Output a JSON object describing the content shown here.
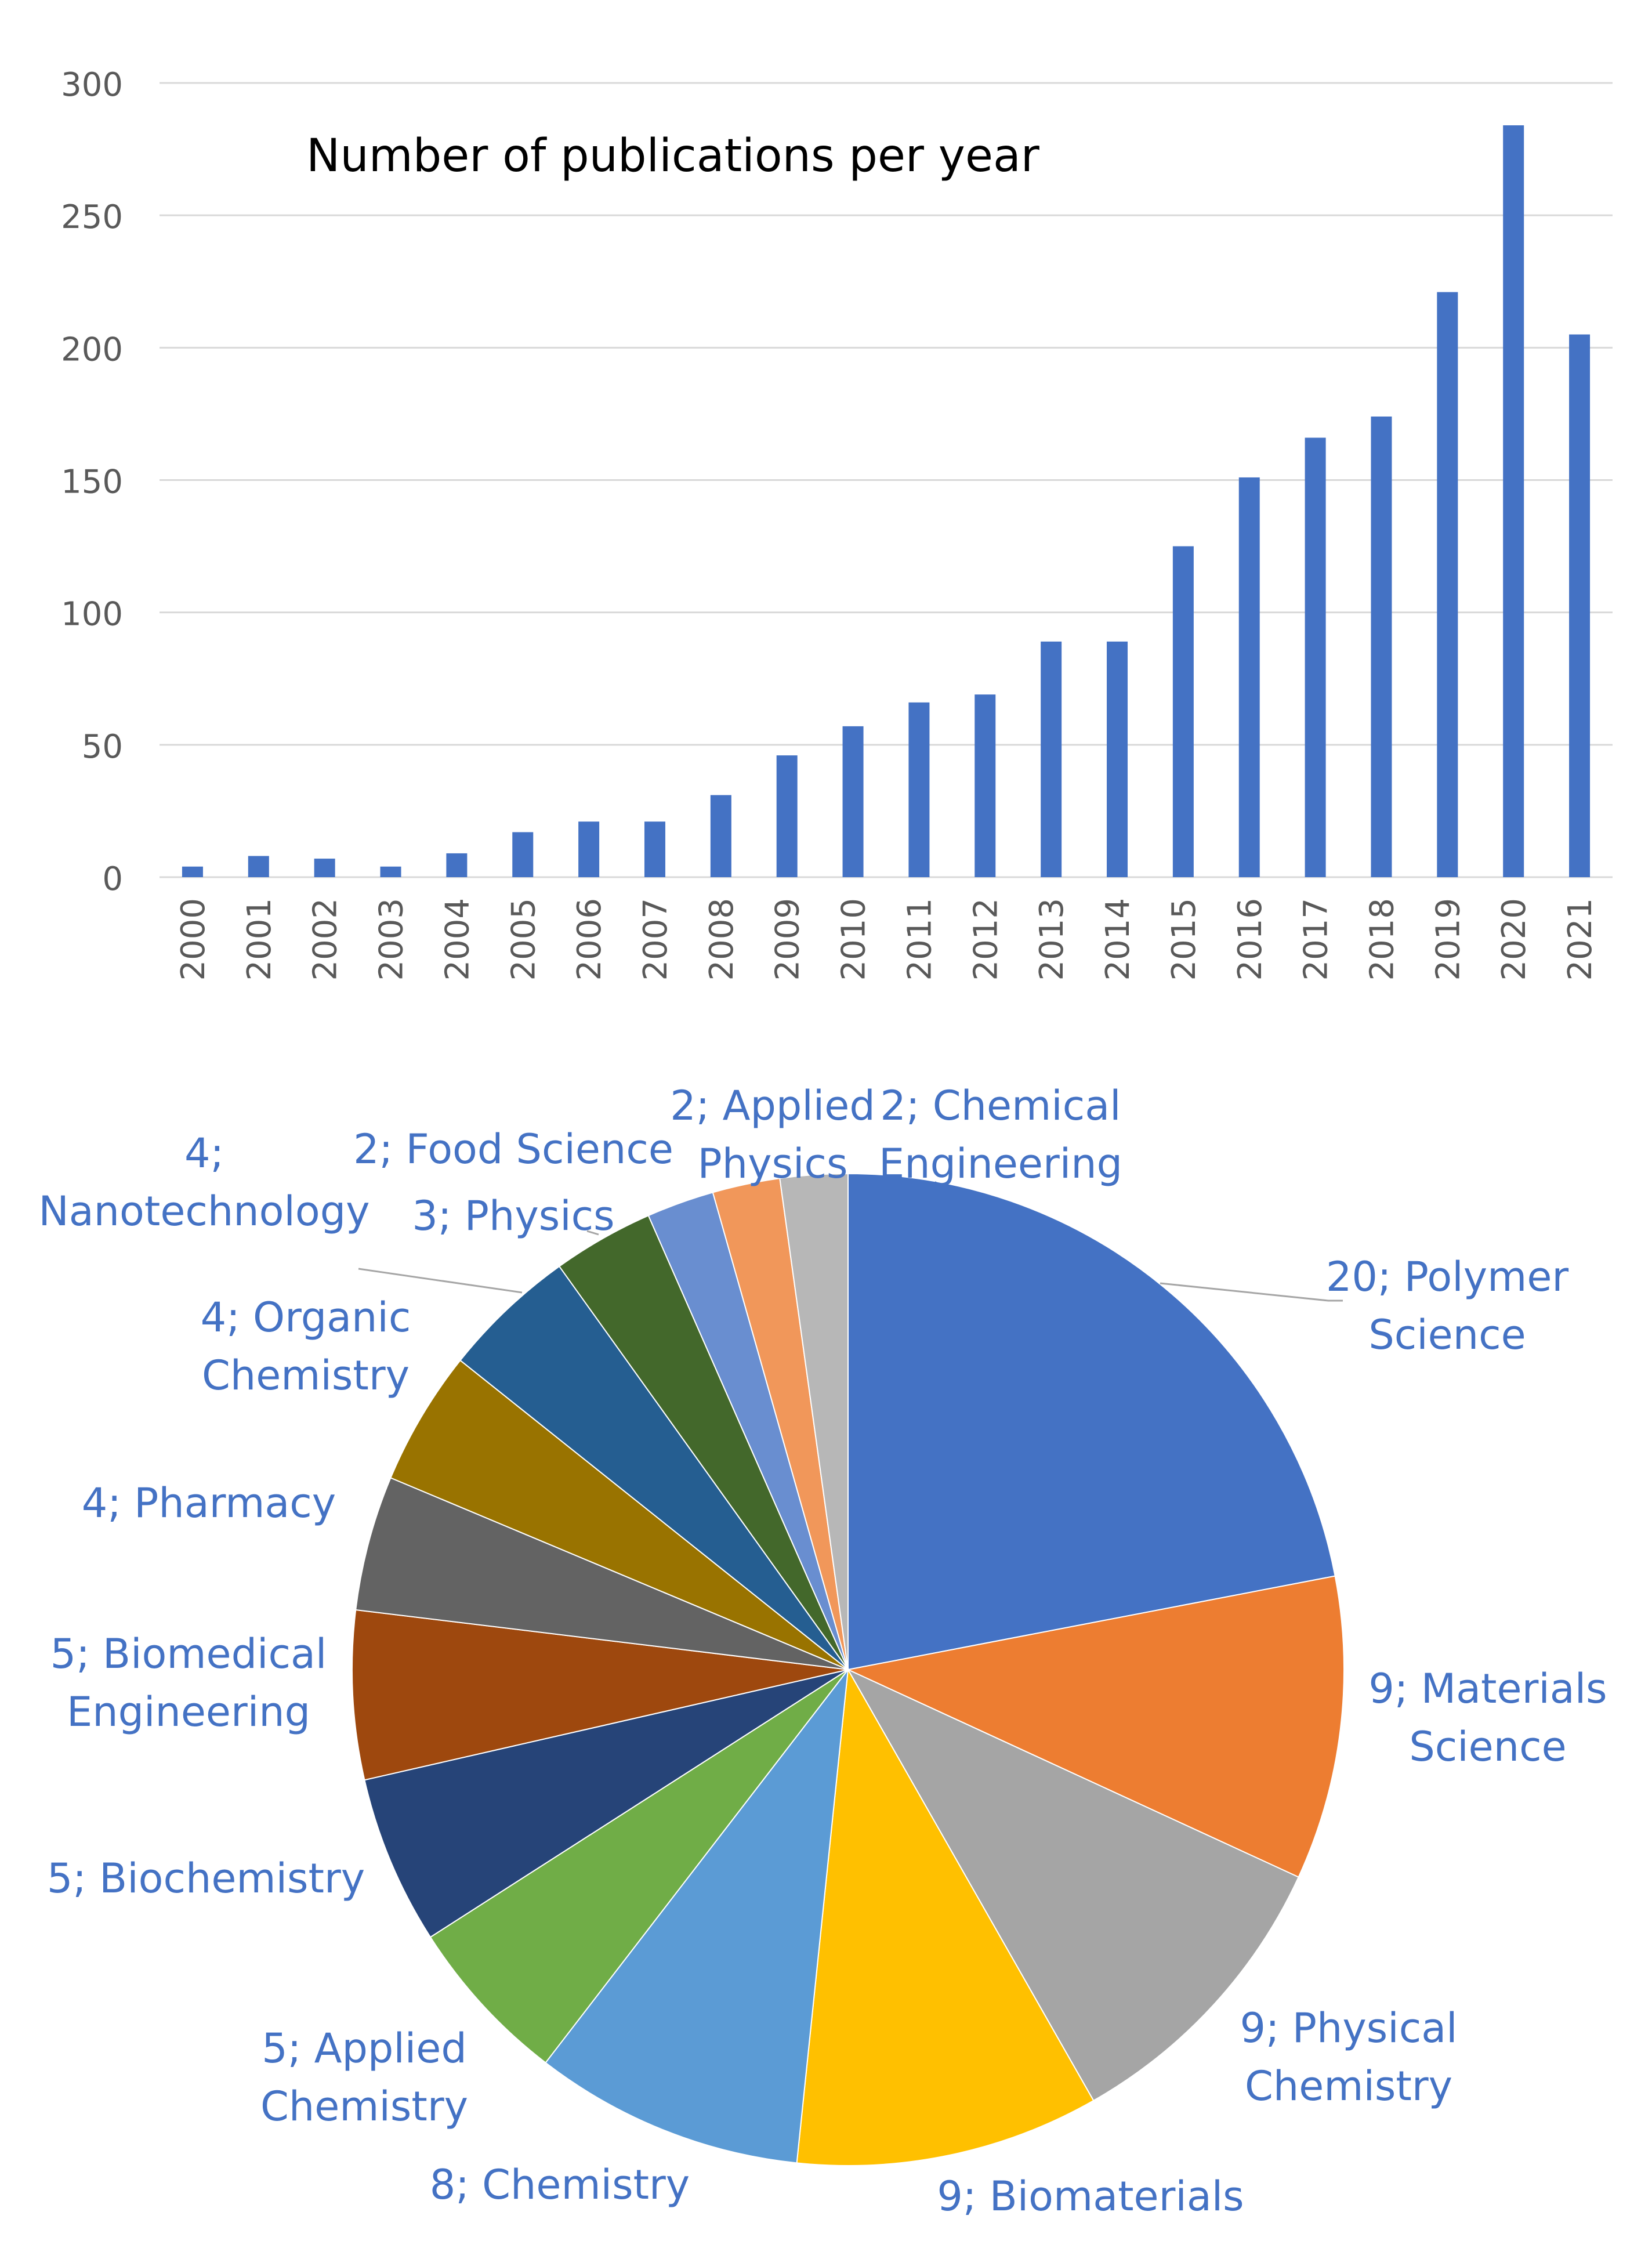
{
  "chart_data": [
    {
      "type": "bar",
      "title": "Number of publications per year",
      "xlabel": "",
      "ylabel": "",
      "ylim": [
        0,
        300
      ],
      "yticks": [
        0,
        50,
        100,
        150,
        200,
        250,
        300
      ],
      "grid": true,
      "color": "#4472C4",
      "categories": [
        "2000",
        "2001",
        "2002",
        "2003",
        "2004",
        "2005",
        "2006",
        "2007",
        "2008",
        "2009",
        "2010",
        "2011",
        "2012",
        "2013",
        "2014",
        "2015",
        "2016",
        "2017",
        "2018",
        "2019",
        "2020",
        "2021"
      ],
      "values": [
        4,
        8,
        7,
        4,
        9,
        17,
        21,
        21,
        31,
        46,
        57,
        66,
        69,
        89,
        89,
        125,
        151,
        166,
        174,
        221,
        284,
        205
      ]
    },
    {
      "type": "pie",
      "title": "",
      "start_direction": "top",
      "slices": [
        {
          "name": "20; Polymer Science",
          "lines": [
            "20; Polymer",
            "Science"
          ],
          "value": 20,
          "color": "#4472C4"
        },
        {
          "name": "9; Materials Science",
          "lines": [
            "9; Materials",
            "Science"
          ],
          "value": 9,
          "color": "#ED7D31"
        },
        {
          "name": "9; Physical Chemistry",
          "lines": [
            "9; Physical",
            "Chemistry"
          ],
          "value": 9,
          "color": "#A5A5A5"
        },
        {
          "name": "9; Biomaterials",
          "lines": [
            "9; Biomaterials"
          ],
          "value": 9,
          "color": "#FFC000"
        },
        {
          "name": "8; Chemistry",
          "lines": [
            "8; Chemistry"
          ],
          "value": 8,
          "color": "#5B9BD5"
        },
        {
          "name": "5; Applied Chemistry",
          "lines": [
            "5; Applied",
            "Chemistry"
          ],
          "value": 5,
          "color": "#70AD47"
        },
        {
          "name": "5; Biochemistry",
          "lines": [
            "5; Biochemistry"
          ],
          "value": 5,
          "color": "#264478"
        },
        {
          "name": "5; Biomedical Engineering",
          "lines": [
            "5; Biomedical",
            "Engineering"
          ],
          "value": 5,
          "color": "#9E480E"
        },
        {
          "name": "4;  Pharmacy",
          "lines": [
            "4;  Pharmacy"
          ],
          "value": 4,
          "color": "#636363"
        },
        {
          "name": "4; Organic Chemistry",
          "lines": [
            "4; Organic",
            "Chemistry"
          ],
          "value": 4,
          "color": "#997300"
        },
        {
          "name": "4; Nanotechnology",
          "lines": [
            "4;",
            "Nanotechnology"
          ],
          "value": 4,
          "color": "#255E91"
        },
        {
          "name": "3; Physics",
          "lines": [
            "3; Physics"
          ],
          "value": 3,
          "color": "#43682B"
        },
        {
          "name": "2; Food Science",
          "lines": [
            "2; Food Science"
          ],
          "value": 2,
          "color": "#698ED0"
        },
        {
          "name": "2; Applied Physics",
          "lines": [
            "2; Applied",
            "Physics"
          ],
          "value": 2,
          "color": "#F1975A"
        },
        {
          "name": "2; Chemical Engineering",
          "lines": [
            "2; Chemical",
            "Engineering"
          ],
          "value": 2,
          "color": "#B7B7B7"
        }
      ]
    }
  ]
}
